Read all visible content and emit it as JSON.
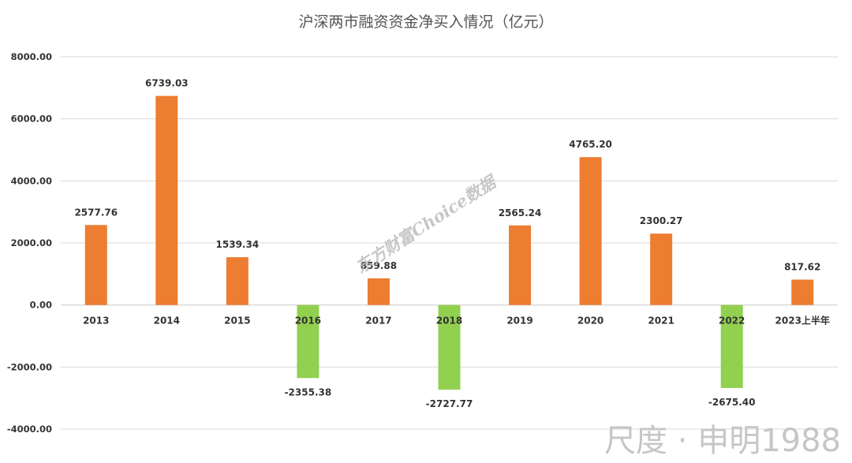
{
  "chart_data": {
    "type": "bar",
    "title": "沪深两市融资资金净买入情况（亿元）",
    "categories": [
      "2013",
      "2014",
      "2015",
      "2016",
      "2017",
      "2018",
      "2019",
      "2020",
      "2021",
      "2022",
      "2023上半年"
    ],
    "values": [
      2577.76,
      6739.03,
      1539.34,
      -2355.38,
      859.88,
      -2727.77,
      2565.24,
      4765.2,
      2300.27,
      -2675.4,
      817.62
    ],
    "value_labels": [
      "2577.76",
      "6739.03",
      "1539.34",
      "-2355.38",
      "859.88",
      "-2727.77",
      "2565.24",
      "4765.20",
      "2300.27",
      "-2675.40",
      "817.62"
    ],
    "ylim": [
      -4000,
      8000
    ],
    "yticks": [
      8000,
      6000,
      4000,
      2000,
      0,
      -2000,
      -4000
    ],
    "ytick_labels": [
      "8000.00",
      "6000.00",
      "4000.00",
      "2000.00",
      "0.00",
      "-2000.00",
      "-4000.00"
    ],
    "grid": true,
    "xlabel": "",
    "ylabel": "",
    "colors": {
      "positive": "#ed7d31",
      "negative": "#92d050"
    }
  },
  "watermarks": {
    "center": "东方财富Choice数据",
    "corner": "尺度 · 申明1988"
  }
}
